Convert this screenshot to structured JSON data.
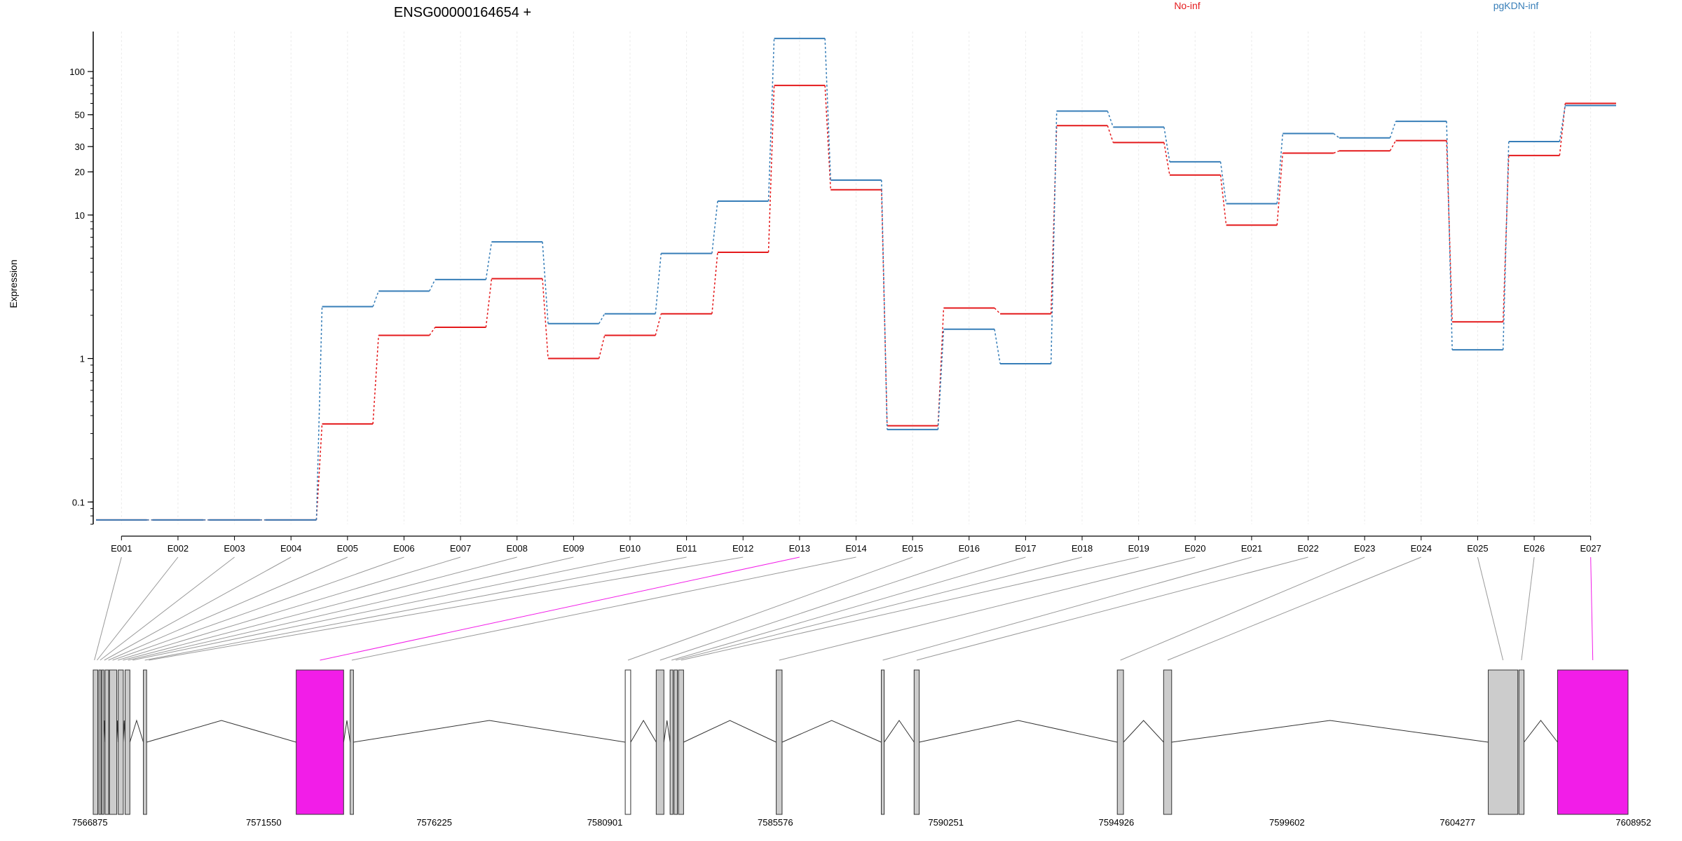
{
  "colors": {
    "no_inf": "#e41a1c",
    "pgkdn_inf": "#377eb8",
    "exon": "#cccccc",
    "exon_highlight": "#f21de8",
    "grid": "#ebebeb",
    "axis": "#000000"
  },
  "chart_data": {
    "type": "line",
    "title": "ENSG00000164654 +",
    "ylabel": "Expression",
    "yscale": "log",
    "ylim": [
      0.07,
      190
    ],
    "ytick_values": [
      0.1,
      1,
      10,
      20,
      30,
      50,
      100
    ],
    "ytick_labels": [
      "0.1",
      "1",
      "10",
      "20",
      "30",
      "50",
      "100"
    ],
    "categories": [
      "E001",
      "E002",
      "E003",
      "E004",
      "E005",
      "E006",
      "E007",
      "E008",
      "E009",
      "E010",
      "E011",
      "E012",
      "E013",
      "E014",
      "E015",
      "E016",
      "E017",
      "E018",
      "E019",
      "E020",
      "E021",
      "E022",
      "E023",
      "E024",
      "E025",
      "E026",
      "E027"
    ],
    "series": [
      {
        "name": "No-inf",
        "color": "#e41a1c",
        "values": [
          0.075,
          0.075,
          0.075,
          0.075,
          0.35,
          1.45,
          1.65,
          3.6,
          1.0,
          1.45,
          2.05,
          5.5,
          80,
          15,
          0.34,
          2.25,
          2.05,
          42,
          32,
          19,
          8.5,
          27,
          28,
          33,
          1.8,
          26,
          60
        ]
      },
      {
        "name": "pgKDN-inf",
        "color": "#377eb8",
        "values": [
          0.075,
          0.075,
          0.075,
          0.075,
          2.3,
          2.95,
          3.55,
          6.5,
          1.75,
          2.05,
          5.4,
          12.5,
          170,
          17.5,
          0.32,
          1.6,
          0.92,
          53,
          41,
          23.5,
          12,
          37,
          34.5,
          45,
          1.15,
          32.5,
          58
        ]
      }
    ],
    "legend": {
      "position": "top",
      "entries": [
        "No-inf",
        "pgKDN-inf"
      ]
    },
    "gene_axis": {
      "start": 7566875,
      "end": 7608952,
      "tick_values": [
        7566875,
        7571550,
        7576225,
        7580901,
        7585576,
        7590251,
        7594926,
        7599602,
        7604277,
        7608952
      ],
      "tick_labels": [
        "7566875",
        "7571550",
        "7576225",
        "7580901",
        "7585576",
        "7590251",
        "7594926",
        "7599602",
        "7604277",
        "7608952"
      ]
    },
    "exons": [
      {
        "id": "E001",
        "start": 7566875,
        "end": 7566940,
        "highlight": false
      },
      {
        "id": "E002",
        "start": 7566950,
        "end": 7567010,
        "highlight": false
      },
      {
        "id": "E003",
        "start": 7567020,
        "end": 7567110,
        "highlight": false
      },
      {
        "id": "E004",
        "start": 7567120,
        "end": 7567240,
        "highlight": false
      },
      {
        "id": "E005",
        "start": 7567250,
        "end": 7567330,
        "highlight": false
      },
      {
        "id": "E006",
        "start": 7567340,
        "end": 7567470,
        "highlight": false
      },
      {
        "id": "E007",
        "start": 7567480,
        "end": 7567620,
        "highlight": false
      },
      {
        "id": "E008",
        "start": 7567630,
        "end": 7567750,
        "highlight": false
      },
      {
        "id": "E009",
        "start": 7567760,
        "end": 7567900,
        "highlight": false
      },
      {
        "id": "E010",
        "start": 7567910,
        "end": 7568000,
        "highlight": false
      },
      {
        "id": "E011",
        "start": 7568250,
        "end": 7568330,
        "highlight": false
      },
      {
        "id": "E012",
        "start": 7568360,
        "end": 7568440,
        "highlight": false
      },
      {
        "id": "E013",
        "start": 7572440,
        "end": 7573740,
        "highlight": true
      },
      {
        "id": "E014",
        "start": 7573920,
        "end": 7574010,
        "highlight": false
      },
      {
        "id": "E015",
        "start": 7581460,
        "end": 7581610,
        "highlight": false
      },
      {
        "id": "E016",
        "start": 7582310,
        "end": 7582520,
        "highlight": false
      },
      {
        "id": "E017",
        "start": 7582690,
        "end": 7582770,
        "highlight": false
      },
      {
        "id": "E018",
        "start": 7582800,
        "end": 7582890,
        "highlight": false
      },
      {
        "id": "E019",
        "start": 7582920,
        "end": 7583060,
        "highlight": false
      },
      {
        "id": "E020",
        "start": 7585600,
        "end": 7585760,
        "highlight": false
      },
      {
        "id": "E021",
        "start": 7588480,
        "end": 7588560,
        "highlight": false
      },
      {
        "id": "E022",
        "start": 7589380,
        "end": 7589520,
        "highlight": false
      },
      {
        "id": "E023",
        "start": 7594950,
        "end": 7595120,
        "highlight": false
      },
      {
        "id": "E024",
        "start": 7596220,
        "end": 7596440,
        "highlight": false
      },
      {
        "id": "E025",
        "start": 7605120,
        "end": 7605930,
        "highlight": false
      },
      {
        "id": "E026",
        "start": 7605960,
        "end": 7606100,
        "highlight": false
      },
      {
        "id": "E027",
        "start": 7607020,
        "end": 7608952,
        "highlight": true
      }
    ],
    "exon_blocks": [
      [
        7566875,
        7567000
      ],
      [
        7567030,
        7567080
      ],
      [
        7567110,
        7567160
      ],
      [
        7567200,
        7567300
      ],
      [
        7567320,
        7567520
      ],
      [
        7567560,
        7567700
      ],
      [
        7567750,
        7567880
      ],
      [
        7568250,
        7568340
      ],
      [
        7572440,
        7573740
      ],
      [
        7573920,
        7574010
      ],
      [
        7581460,
        7581610
      ],
      [
        7582310,
        7582520
      ],
      [
        7582690,
        7582770
      ],
      [
        7582800,
        7582890
      ],
      [
        7582920,
        7583060
      ],
      [
        7585600,
        7585760
      ],
      [
        7588480,
        7588560
      ],
      [
        7589380,
        7589520
      ],
      [
        7594950,
        7595120
      ],
      [
        7596220,
        7596440
      ],
      [
        7605120,
        7605930
      ],
      [
        7605960,
        7606100
      ],
      [
        7607020,
        7608952
      ]
    ],
    "open_blocks": [
      [
        7581460,
        7581610
      ]
    ]
  }
}
